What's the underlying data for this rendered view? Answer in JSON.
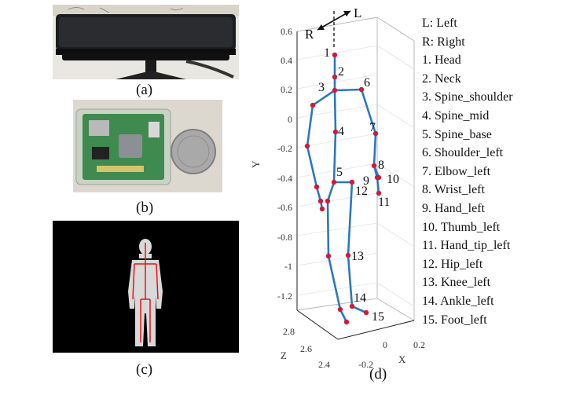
{
  "captions": {
    "a": "(a)",
    "b": "(b)",
    "c": "(c)",
    "d": "(d)"
  },
  "plot": {
    "y_axis_label": "Y",
    "z_axis_label": "Z",
    "x_axis_label": "X",
    "y_ticks": [
      "0.6",
      "0.4",
      "0.2",
      "0",
      "-0.2",
      "-0.4",
      "-0.6",
      "-0.8",
      "-1",
      "-1.2"
    ],
    "z_ticks": [
      "2.8",
      "2.6",
      "2.4"
    ],
    "x_ticks": [
      "-0.2",
      "0",
      "0.2"
    ],
    "direction_left": "L",
    "direction_right": "R",
    "joint_numbers": [
      "1",
      "2",
      "3",
      "4",
      "5",
      "6",
      "7",
      "8",
      "9",
      "10",
      "11",
      "12",
      "13",
      "14",
      "15"
    ],
    "colors": {
      "skeleton": "#2a78c0",
      "joint": "#d11a3a"
    }
  },
  "legend": [
    "L: Left",
    "R: Right",
    "1. Head",
    "2. Neck",
    "3. Spine_shoulder",
    "4. Spine_mid",
    "5. Spine_base",
    "6. Shoulder_left",
    "7. Elbow_left",
    "8. Wrist_left",
    "9. Hand_left",
    "10. Thumb_left",
    "11. Hand_tip_left",
    "12. Hip_left",
    "13. Knee_left",
    "14. Ankle_left",
    "15. Foot_left"
  ]
}
